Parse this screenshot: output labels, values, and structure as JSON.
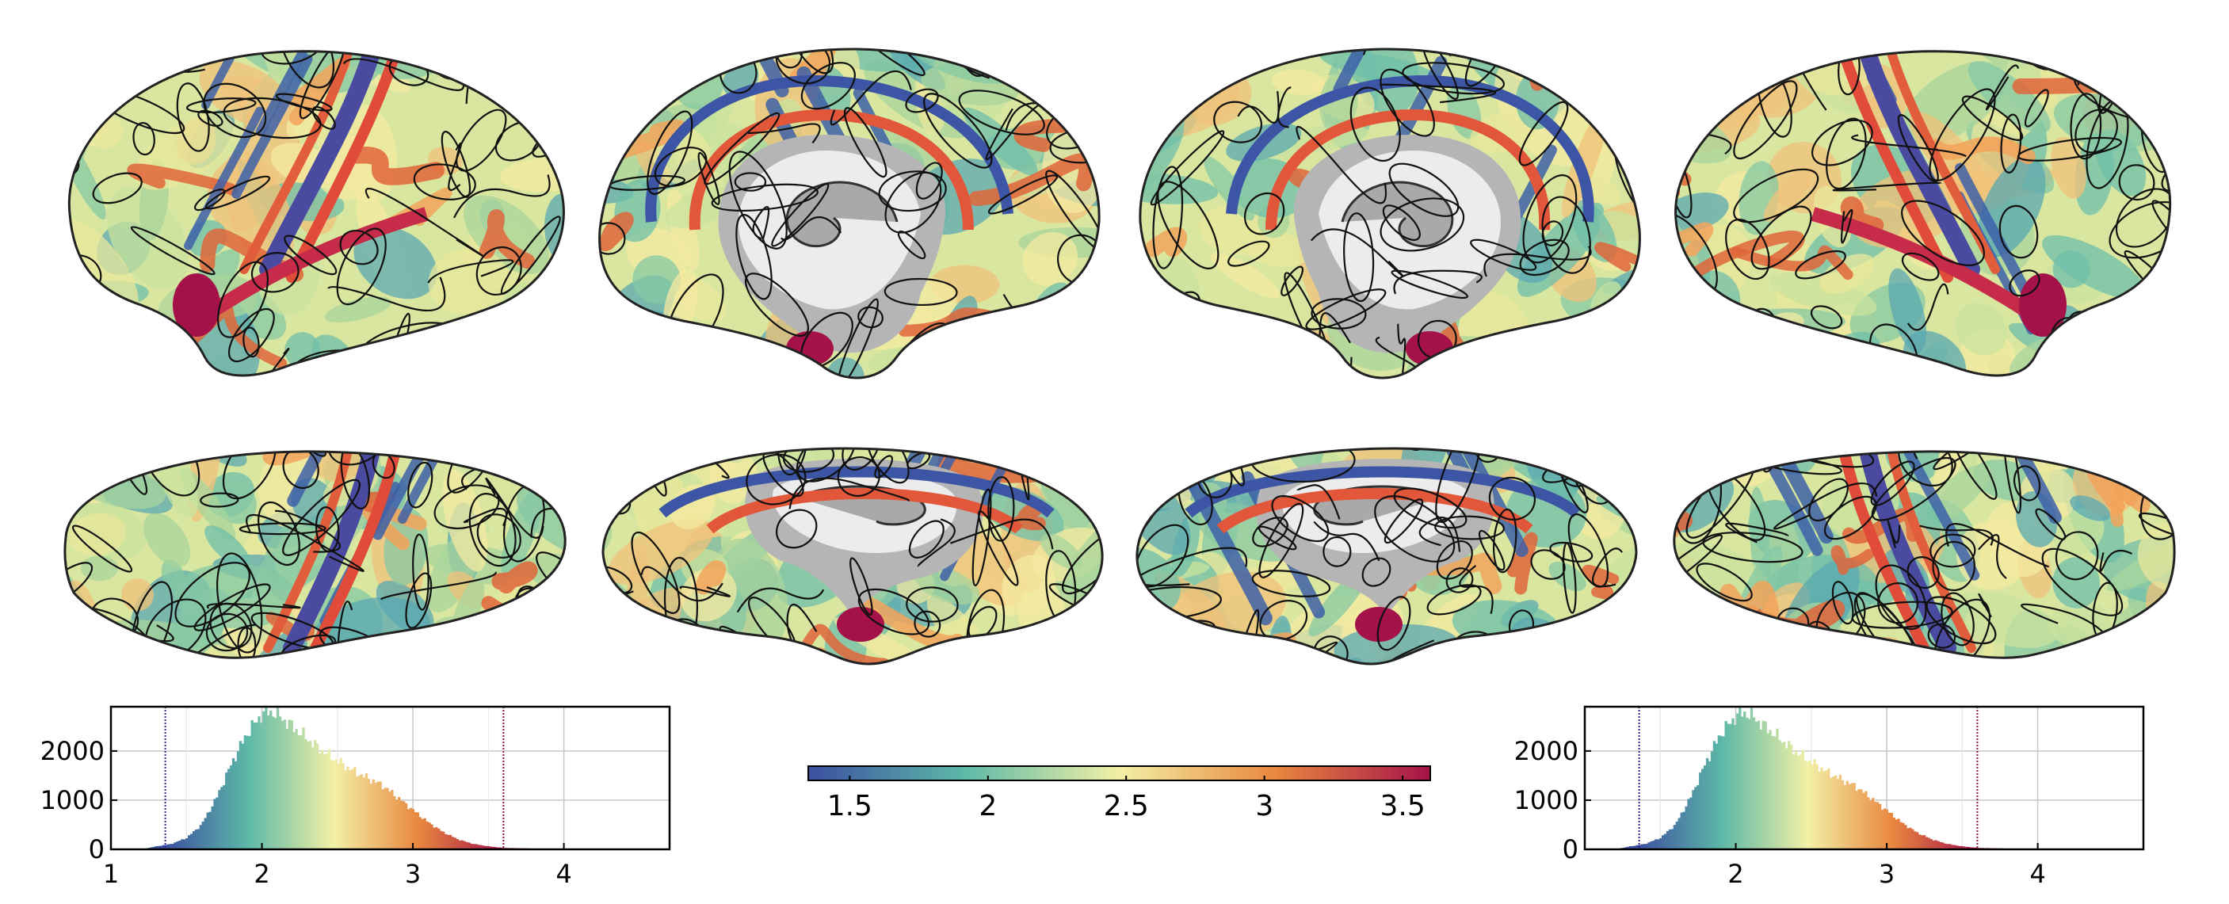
{
  "colors": {
    "low": "#3b4fa0",
    "mid_low": "#5db9a8",
    "mid": "#f2f0a5",
    "mid_high": "#e9873f",
    "high": "#a5124a",
    "medial_wall": "#b5b5b5",
    "medial_wall_light": "#ececec",
    "contour": "#111111"
  },
  "views": [
    {
      "name": "left-lateral"
    },
    {
      "name": "left-medial"
    },
    {
      "name": "right-medial"
    },
    {
      "name": "right-lateral"
    },
    {
      "name": "left-superior"
    },
    {
      "name": "left-inferior"
    },
    {
      "name": "right-inferior"
    },
    {
      "name": "right-superior"
    }
  ],
  "colorbar": {
    "min": 1.35,
    "max": 3.6,
    "ticks": [
      {
        "value": 1.5,
        "label": "1.5"
      },
      {
        "value": 2,
        "label": "2"
      },
      {
        "value": 2.5,
        "label": "2.5"
      },
      {
        "value": 3,
        "label": "3"
      },
      {
        "value": 3.5,
        "label": "3.5"
      }
    ]
  },
  "chart_data": [
    {
      "type": "bar",
      "name": "left-histogram",
      "xlim": [
        1,
        4.7
      ],
      "ylim": [
        0,
        2900
      ],
      "x_ticks": [
        {
          "value": 1,
          "label": "1"
        },
        {
          "value": 2,
          "label": "2"
        },
        {
          "value": 3,
          "label": "3"
        },
        {
          "value": 4,
          "label": "4"
        }
      ],
      "y_ticks": [
        {
          "value": 0,
          "label": "0"
        },
        {
          "value": 1000,
          "label": "1000"
        },
        {
          "value": 2000,
          "label": "2000"
        }
      ],
      "threshold_low": 1.36,
      "threshold_high": 3.6,
      "grid": true,
      "curve": [
        [
          1.2,
          0
        ],
        [
          1.3,
          60
        ],
        [
          1.4,
          110
        ],
        [
          1.5,
          230
        ],
        [
          1.6,
          500
        ],
        [
          1.7,
          1050
        ],
        [
          1.8,
          1750
        ],
        [
          1.9,
          2350
        ],
        [
          2.0,
          2750
        ],
        [
          2.05,
          2800
        ],
        [
          2.1,
          2750
        ],
        [
          2.2,
          2500
        ],
        [
          2.3,
          2250
        ],
        [
          2.4,
          2000
        ],
        [
          2.5,
          1800
        ],
        [
          2.6,
          1600
        ],
        [
          2.7,
          1450
        ],
        [
          2.8,
          1300
        ],
        [
          2.9,
          1050
        ],
        [
          3.0,
          800
        ],
        [
          3.1,
          550
        ],
        [
          3.2,
          350
        ],
        [
          3.3,
          200
        ],
        [
          3.4,
          110
        ],
        [
          3.5,
          60
        ],
        [
          3.6,
          30
        ],
        [
          3.8,
          15
        ],
        [
          4.0,
          8
        ],
        [
          4.3,
          3
        ],
        [
          4.6,
          0
        ]
      ]
    },
    {
      "type": "bar",
      "name": "right-histogram",
      "xlim": [
        1,
        4.7
      ],
      "ylim": [
        0,
        2900
      ],
      "x_ticks": [
        {
          "value": 2,
          "label": "2"
        },
        {
          "value": 3,
          "label": "3"
        },
        {
          "value": 4,
          "label": "4"
        }
      ],
      "y_ticks": [
        {
          "value": 0,
          "label": "0"
        },
        {
          "value": 1000,
          "label": "1000"
        },
        {
          "value": 2000,
          "label": "2000"
        }
      ],
      "threshold_low": 1.36,
      "threshold_high": 3.6,
      "grid": true,
      "curve": [
        [
          1.2,
          0
        ],
        [
          1.3,
          60
        ],
        [
          1.4,
          110
        ],
        [
          1.5,
          230
        ],
        [
          1.6,
          500
        ],
        [
          1.7,
          1050
        ],
        [
          1.8,
          1750
        ],
        [
          1.9,
          2350
        ],
        [
          2.0,
          2700
        ],
        [
          2.05,
          2780
        ],
        [
          2.1,
          2730
        ],
        [
          2.2,
          2480
        ],
        [
          2.3,
          2230
        ],
        [
          2.4,
          1980
        ],
        [
          2.5,
          1780
        ],
        [
          2.6,
          1580
        ],
        [
          2.7,
          1420
        ],
        [
          2.8,
          1270
        ],
        [
          2.9,
          1030
        ],
        [
          3.0,
          790
        ],
        [
          3.1,
          540
        ],
        [
          3.2,
          340
        ],
        [
          3.3,
          200
        ],
        [
          3.4,
          110
        ],
        [
          3.5,
          60
        ],
        [
          3.6,
          30
        ],
        [
          3.8,
          15
        ],
        [
          4.0,
          8
        ],
        [
          4.3,
          3
        ],
        [
          4.6,
          0
        ]
      ]
    }
  ]
}
